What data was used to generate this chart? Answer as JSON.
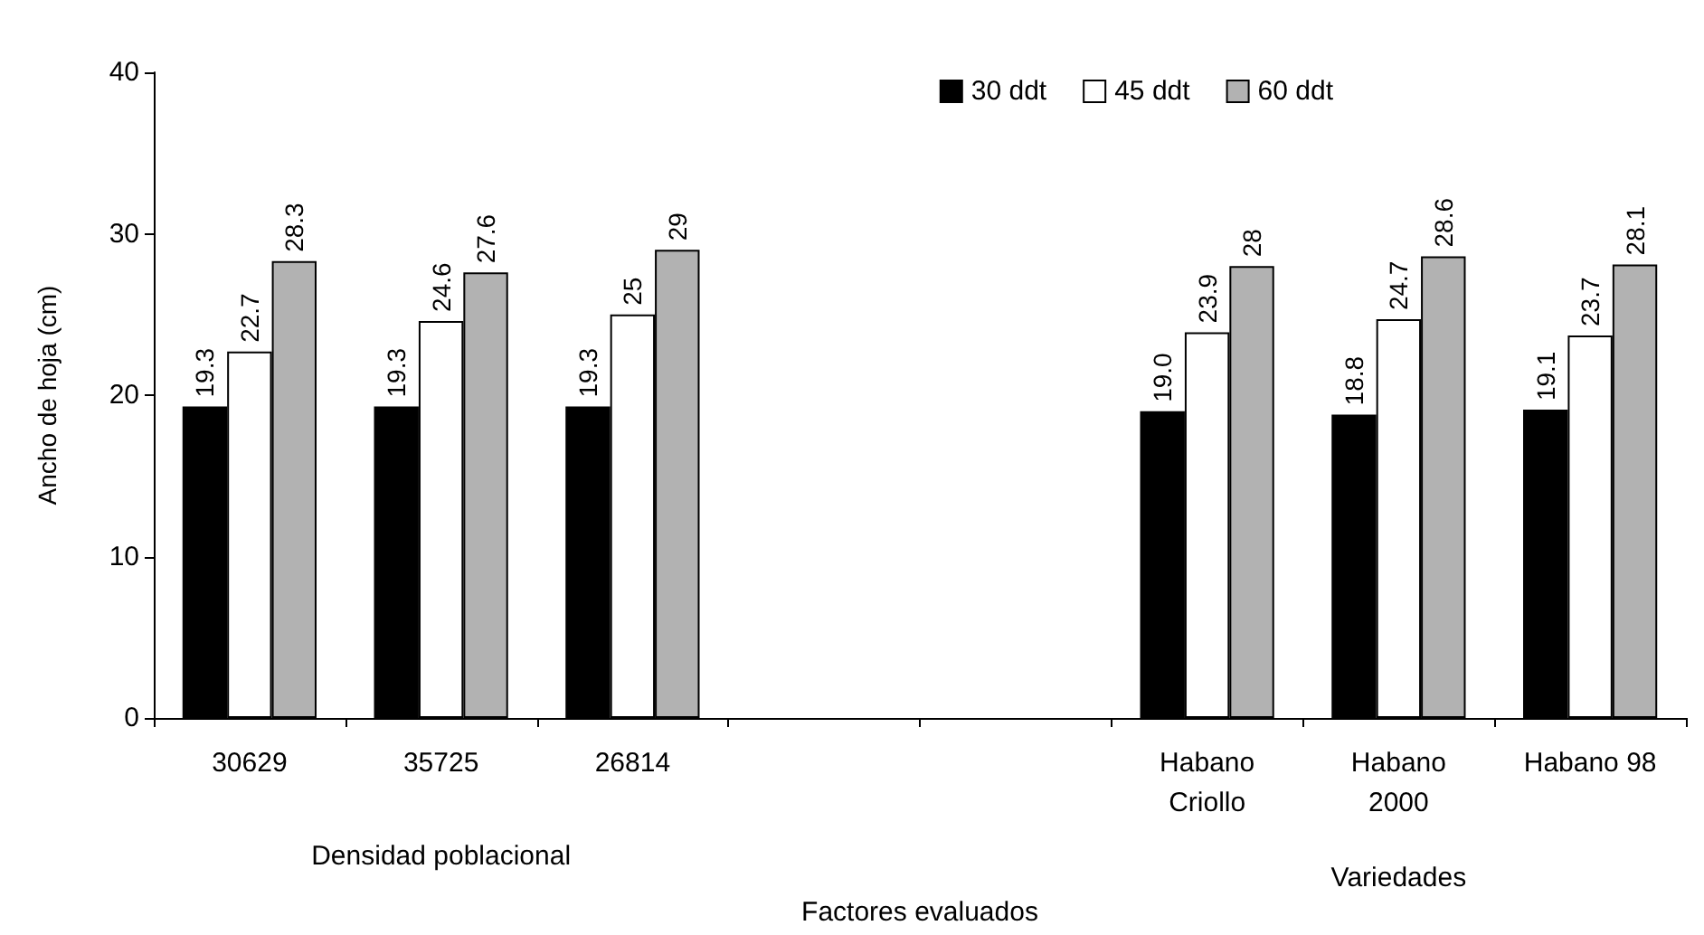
{
  "chart_data": {
    "type": "bar",
    "xlabel": "Factores evaluados",
    "ylabel": "Ancho de hoja (cm)",
    "categories": [
      "30629",
      "35725",
      "26814",
      null,
      null,
      "Habano\nCriollo",
      "Habano\n2000",
      "Habano 98"
    ],
    "series": [
      {
        "name": "30 ddt",
        "color": "#000000",
        "values": [
          19.3,
          19.3,
          19.3,
          null,
          null,
          19.0,
          18.8,
          19.1
        ],
        "value_labels": [
          "19.3",
          "19.3",
          "19.3",
          null,
          null,
          "19.0",
          "18.8",
          "19.1"
        ]
      },
      {
        "name": "45 ddt",
        "color": "#ffffff",
        "values": [
          22.7,
          24.6,
          25,
          null,
          null,
          23.9,
          24.7,
          23.7
        ],
        "value_labels": [
          "22.7",
          "24.6",
          "25",
          null,
          null,
          "23.9",
          "24.7",
          "23.7"
        ]
      },
      {
        "name": "60 ddt",
        "color": "#b2b2b2",
        "values": [
          28.3,
          27.6,
          29,
          null,
          null,
          28,
          28.6,
          28.1
        ],
        "value_labels": [
          "28.3",
          "27.6",
          "29",
          null,
          null,
          "28",
          "28.6",
          "28.1"
        ]
      }
    ],
    "ylim": [
      0,
      40
    ],
    "yticks": [
      0,
      10,
      20,
      30,
      40
    ],
    "grid": false,
    "legend": "top right",
    "annotations": [
      "Densidad poblacional",
      "Variedades"
    ]
  }
}
